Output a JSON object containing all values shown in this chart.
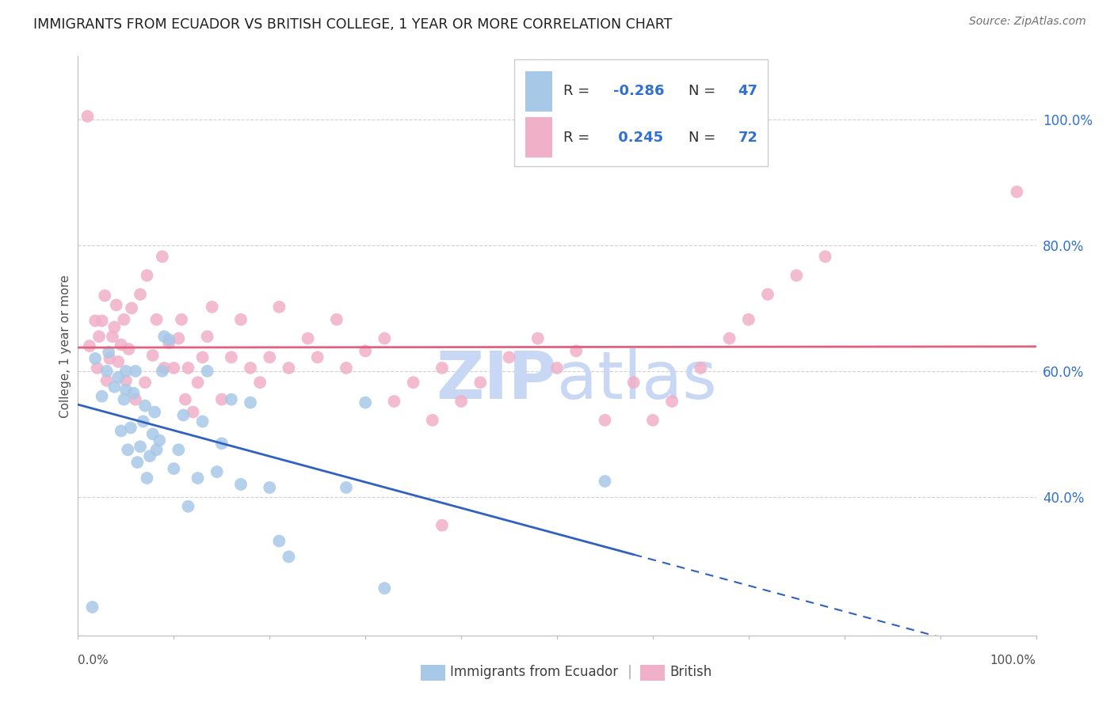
{
  "title": "IMMIGRANTS FROM ECUADOR VS BRITISH COLLEGE, 1 YEAR OR MORE CORRELATION CHART",
  "source": "Source: ZipAtlas.com",
  "ylabel": "College, 1 year or more",
  "ytick_labels": [
    "100.0%",
    "80.0%",
    "60.0%",
    "40.0%"
  ],
  "ytick_values": [
    1.0,
    0.8,
    0.6,
    0.4
  ],
  "xlim": [
    0.0,
    1.0
  ],
  "ylim": [
    0.18,
    1.1
  ],
  "blue_scatter_color": "#a8c8e8",
  "pink_scatter_color": "#f0b0c8",
  "blue_line_color": "#3060c0",
  "pink_line_color": "#e06080",
  "blue_text_color": "#3070d0",
  "watermark_ZIP_color": "#c8d8f4",
  "watermark_atlas_color": "#c8d8f4",
  "background_color": "#ffffff",
  "grid_color": "#cccccc",
  "blue_x": [
    0.018,
    0.025,
    0.03,
    0.032,
    0.038,
    0.042,
    0.045,
    0.048,
    0.05,
    0.05,
    0.052,
    0.055,
    0.058,
    0.06,
    0.062,
    0.065,
    0.068,
    0.07,
    0.072,
    0.075,
    0.078,
    0.08,
    0.082,
    0.085,
    0.088,
    0.09,
    0.095,
    0.1,
    0.105,
    0.11,
    0.115,
    0.125,
    0.13,
    0.135,
    0.145,
    0.15,
    0.16,
    0.17,
    0.18,
    0.2,
    0.21,
    0.22,
    0.28,
    0.3,
    0.32,
    0.55,
    0.015
  ],
  "blue_y": [
    0.62,
    0.56,
    0.6,
    0.63,
    0.575,
    0.59,
    0.505,
    0.555,
    0.57,
    0.6,
    0.475,
    0.51,
    0.565,
    0.6,
    0.455,
    0.48,
    0.52,
    0.545,
    0.43,
    0.465,
    0.5,
    0.535,
    0.475,
    0.49,
    0.6,
    0.655,
    0.65,
    0.445,
    0.475,
    0.53,
    0.385,
    0.43,
    0.52,
    0.6,
    0.44,
    0.485,
    0.555,
    0.42,
    0.55,
    0.415,
    0.33,
    0.305,
    0.415,
    0.55,
    0.255,
    0.425,
    0.225
  ],
  "pink_x": [
    0.012,
    0.018,
    0.02,
    0.022,
    0.025,
    0.028,
    0.03,
    0.033,
    0.036,
    0.038,
    0.04,
    0.042,
    0.045,
    0.048,
    0.05,
    0.053,
    0.056,
    0.06,
    0.065,
    0.07,
    0.072,
    0.078,
    0.082,
    0.088,
    0.09,
    0.095,
    0.1,
    0.105,
    0.108,
    0.112,
    0.115,
    0.12,
    0.125,
    0.13,
    0.135,
    0.14,
    0.15,
    0.16,
    0.17,
    0.18,
    0.19,
    0.2,
    0.21,
    0.22,
    0.24,
    0.25,
    0.27,
    0.28,
    0.3,
    0.32,
    0.33,
    0.35,
    0.37,
    0.38,
    0.4,
    0.42,
    0.45,
    0.48,
    0.5,
    0.52,
    0.55,
    0.58,
    0.6,
    0.62,
    0.65,
    0.68,
    0.7,
    0.72,
    0.75,
    0.78,
    0.98,
    0.01,
    0.38
  ],
  "pink_y": [
    0.64,
    0.68,
    0.605,
    0.655,
    0.68,
    0.72,
    0.585,
    0.62,
    0.655,
    0.67,
    0.705,
    0.615,
    0.642,
    0.682,
    0.585,
    0.635,
    0.7,
    0.555,
    0.722,
    0.582,
    0.752,
    0.625,
    0.682,
    0.782,
    0.605,
    0.645,
    0.605,
    0.652,
    0.682,
    0.555,
    0.605,
    0.535,
    0.582,
    0.622,
    0.655,
    0.702,
    0.555,
    0.622,
    0.682,
    0.605,
    0.582,
    0.622,
    0.702,
    0.605,
    0.652,
    0.622,
    0.682,
    0.605,
    0.632,
    0.652,
    0.552,
    0.582,
    0.522,
    0.605,
    0.552,
    0.582,
    0.622,
    0.652,
    0.605,
    0.632,
    0.522,
    0.582,
    0.522,
    0.552,
    0.605,
    0.652,
    0.682,
    0.722,
    0.752,
    0.782,
    0.885,
    1.005,
    0.355
  ]
}
